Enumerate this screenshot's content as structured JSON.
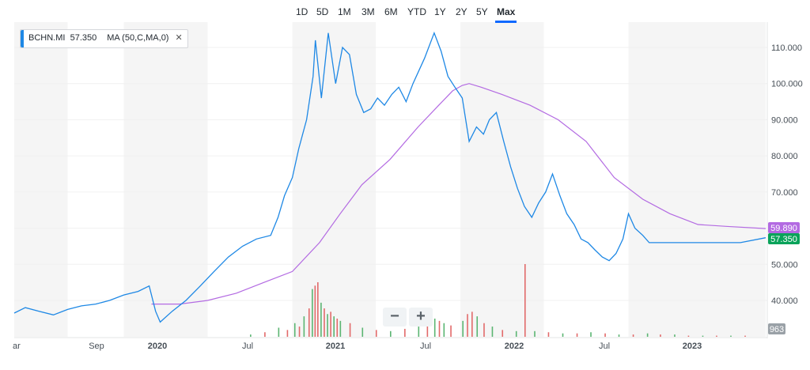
{
  "ranges": [
    {
      "label": "1D",
      "active": false
    },
    {
      "label": "5D",
      "active": false
    },
    {
      "label": "1M",
      "active": false
    },
    {
      "label": "3M",
      "active": false
    },
    {
      "label": "6M",
      "active": false
    },
    {
      "label": "YTD",
      "active": false
    },
    {
      "label": "1Y",
      "active": false
    },
    {
      "label": "2Y",
      "active": false
    },
    {
      "label": "5Y",
      "active": false
    },
    {
      "label": "Max",
      "active": true
    }
  ],
  "legend": {
    "symbol": "BCHN.MI",
    "price": "57.350",
    "ma_label": "MA (50,C,MA,0)",
    "close_icon": "close-icon"
  },
  "zoom": {
    "minus": "−",
    "plus": "+"
  },
  "badges": {
    "ma": "59.890",
    "price": "57.350",
    "volume": "963"
  },
  "colors": {
    "price": "#1e88e5",
    "ma": "#b36ae2",
    "price_badge": "#0aa35a",
    "ma_badge": "#b36ae2",
    "vol_up": "#5bb572",
    "vol_down": "#e26a6a",
    "shade": "#f5f5f5"
  },
  "chart_data": {
    "type": "line",
    "ylim": [
      33,
      117
    ],
    "y_ticks": [
      "110.000",
      "100.000",
      "90.000",
      "80.000",
      "70.000",
      "60.000",
      "50.000",
      "40.000"
    ],
    "x_ticks": [
      "Mar",
      "Sep",
      "2020",
      "Jul",
      "2021",
      "Jul",
      "2022",
      "Jul",
      "2023"
    ],
    "x_range": [
      "2019-05-08",
      "2023-10-26"
    ],
    "series": [
      {
        "values": [
          [
            "2019-05-08",
            36.5
          ],
          [
            "2019-06-01",
            38
          ],
          [
            "2019-07-01",
            37
          ],
          [
            "2019-08-01",
            36
          ],
          [
            "2019-09-01",
            37.5
          ],
          [
            "2019-10-01",
            38.5
          ],
          [
            "2019-11-01",
            39
          ],
          [
            "2019-12-01",
            40
          ],
          [
            "2020-01-01",
            41.5
          ],
          [
            "2020-02-01",
            42.5
          ],
          [
            "2020-02-25",
            44
          ],
          [
            "2020-03-10",
            37
          ],
          [
            "2020-03-20",
            34
          ],
          [
            "2020-04-15",
            37
          ],
          [
            "2020-05-15",
            40
          ],
          [
            "2020-06-15",
            44
          ],
          [
            "2020-07-15",
            48
          ],
          [
            "2020-08-15",
            52
          ],
          [
            "2020-09-15",
            55
          ],
          [
            "2020-10-15",
            57
          ],
          [
            "2020-11-15",
            58
          ],
          [
            "2020-12-01",
            63
          ],
          [
            "2020-12-15",
            69
          ],
          [
            "2021-01-01",
            74
          ],
          [
            "2021-01-15",
            82
          ],
          [
            "2021-02-01",
            90
          ],
          [
            "2021-02-15",
            102
          ],
          [
            "2021-02-20",
            112
          ],
          [
            "2021-03-05",
            96
          ],
          [
            "2021-03-20",
            114
          ],
          [
            "2021-04-05",
            100
          ],
          [
            "2021-04-20",
            110
          ],
          [
            "2021-05-05",
            108
          ],
          [
            "2021-05-20",
            97
          ],
          [
            "2021-06-05",
            92
          ],
          [
            "2021-06-20",
            93
          ],
          [
            "2021-07-05",
            96
          ],
          [
            "2021-07-20",
            94
          ],
          [
            "2021-08-05",
            97
          ],
          [
            "2021-08-20",
            99
          ],
          [
            "2021-09-05",
            95
          ],
          [
            "2021-09-20",
            100
          ],
          [
            "2021-10-15",
            107
          ],
          [
            "2021-11-05",
            114
          ],
          [
            "2021-11-20",
            109
          ],
          [
            "2021-12-05",
            102
          ],
          [
            "2021-12-20",
            99
          ],
          [
            "2022-01-05",
            96
          ],
          [
            "2022-01-20",
            84
          ],
          [
            "2022-02-05",
            88
          ],
          [
            "2022-02-20",
            86
          ],
          [
            "2022-03-05",
            90
          ],
          [
            "2022-03-20",
            92
          ],
          [
            "2022-04-05",
            84
          ],
          [
            "2022-04-20",
            77
          ],
          [
            "2022-05-05",
            71
          ],
          [
            "2022-05-20",
            66
          ],
          [
            "2022-06-05",
            63
          ],
          [
            "2022-06-20",
            67
          ],
          [
            "2022-07-05",
            70
          ],
          [
            "2022-07-20",
            75
          ],
          [
            "2022-08-05",
            69
          ],
          [
            "2022-08-20",
            64
          ],
          [
            "2022-09-05",
            61
          ],
          [
            "2022-09-20",
            57
          ],
          [
            "2022-10-05",
            56
          ],
          [
            "2022-10-20",
            54
          ],
          [
            "2022-11-05",
            52
          ],
          [
            "2022-11-20",
            51
          ],
          [
            "2022-12-05",
            53
          ],
          [
            "2022-12-20",
            57
          ],
          [
            "2023-01-01",
            64
          ],
          [
            "2023-01-15",
            60
          ],
          [
            "2023-02-01",
            58
          ],
          [
            "2023-02-15",
            56
          ],
          [
            "2023-03-01",
            56
          ],
          [
            "2023-04-01",
            56
          ],
          [
            "2023-05-01",
            56
          ],
          [
            "2023-06-01",
            56
          ],
          [
            "2023-07-01",
            56
          ],
          [
            "2023-08-01",
            56
          ],
          [
            "2023-09-01",
            56
          ],
          [
            "2023-10-26",
            57.35
          ]
        ]
      },
      {
        "values": [
          [
            "2020-03-01",
            39
          ],
          [
            "2020-05-01",
            39
          ],
          [
            "2020-07-01",
            40
          ],
          [
            "2020-09-01",
            42
          ],
          [
            "2020-11-01",
            45
          ],
          [
            "2021-01-01",
            48
          ],
          [
            "2021-03-01",
            56
          ],
          [
            "2021-04-15",
            64
          ],
          [
            "2021-06-01",
            72
          ],
          [
            "2021-08-01",
            79
          ],
          [
            "2021-10-01",
            88
          ],
          [
            "2021-11-15",
            94
          ],
          [
            "2021-12-15",
            98
          ],
          [
            "2022-01-05",
            99.5
          ],
          [
            "2022-01-20",
            100
          ],
          [
            "2022-02-15",
            99
          ],
          [
            "2022-04-01",
            97
          ],
          [
            "2022-06-01",
            94
          ],
          [
            "2022-08-01",
            90
          ],
          [
            "2022-10-01",
            84
          ],
          [
            "2022-12-01",
            74
          ],
          [
            "2023-02-01",
            68
          ],
          [
            "2023-04-01",
            64
          ],
          [
            "2023-06-01",
            61
          ],
          [
            "2023-08-01",
            60.5
          ],
          [
            "2023-10-26",
            59.89
          ]
        ]
      }
    ],
    "volume": [
      [
        "2020-10-01",
        2,
        1
      ],
      [
        "2020-11-01",
        4,
        0
      ],
      [
        "2020-12-01",
        8,
        1
      ],
      [
        "2020-12-20",
        6,
        0
      ],
      [
        "2021-01-05",
        12,
        1
      ],
      [
        "2021-01-15",
        9,
        0
      ],
      [
        "2021-01-25",
        18,
        1
      ],
      [
        "2021-02-05",
        25,
        0
      ],
      [
        "2021-02-12",
        42,
        1
      ],
      [
        "2021-02-18",
        45,
        0
      ],
      [
        "2021-02-24",
        48,
        0
      ],
      [
        "2021-03-03",
        30,
        1
      ],
      [
        "2021-03-10",
        25,
        0
      ],
      [
        "2021-03-17",
        20,
        1
      ],
      [
        "2021-03-24",
        22,
        0
      ],
      [
        "2021-03-31",
        18,
        1
      ],
      [
        "2021-04-07",
        16,
        0
      ],
      [
        "2021-04-14",
        14,
        1
      ],
      [
        "2021-05-05",
        12,
        0
      ],
      [
        "2021-06-01",
        8,
        1
      ],
      [
        "2021-07-01",
        6,
        0
      ],
      [
        "2021-08-01",
        5,
        1
      ],
      [
        "2021-09-01",
        7,
        0
      ],
      [
        "2021-10-01",
        9,
        1
      ],
      [
        "2021-10-20",
        12,
        0
      ],
      [
        "2021-11-05",
        16,
        1
      ],
      [
        "2021-11-15",
        14,
        0
      ],
      [
        "2021-11-25",
        12,
        1
      ],
      [
        "2021-12-10",
        10,
        0
      ],
      [
        "2022-01-05",
        14,
        1
      ],
      [
        "2022-01-15",
        20,
        0
      ],
      [
        "2022-01-25",
        22,
        0
      ],
      [
        "2022-02-05",
        18,
        1
      ],
      [
        "2022-02-20",
        12,
        0
      ],
      [
        "2022-03-10",
        9,
        1
      ],
      [
        "2022-04-01",
        6,
        0
      ],
      [
        "2022-05-01",
        5,
        1
      ],
      [
        "2022-05-20",
        64,
        0
      ],
      [
        "2022-06-10",
        5,
        1
      ],
      [
        "2022-07-10",
        4,
        0
      ],
      [
        "2022-08-10",
        3,
        1
      ],
      [
        "2022-09-10",
        3,
        0
      ],
      [
        "2022-10-10",
        4,
        1
      ],
      [
        "2022-11-10",
        3,
        0
      ],
      [
        "2022-12-10",
        2,
        1
      ],
      [
        "2023-01-10",
        2,
        0
      ],
      [
        "2023-02-10",
        3,
        1
      ],
      [
        "2023-03-10",
        2,
        0
      ],
      [
        "2023-04-10",
        2,
        1
      ],
      [
        "2023-05-10",
        1,
        0
      ],
      [
        "2023-06-10",
        1,
        1
      ],
      [
        "2023-07-10",
        1,
        0
      ],
      [
        "2023-08-10",
        1,
        1
      ],
      [
        "2023-09-10",
        1,
        0
      ]
    ],
    "shaded_months": [
      [
        "2019-05-08",
        "2019-09-01"
      ],
      [
        "2020-01-01",
        "2020-07-01"
      ],
      [
        "2021-01-01",
        "2021-07-01"
      ],
      [
        "2022-01-01",
        "2022-07-01"
      ],
      [
        "2023-01-01",
        "2023-10-26"
      ]
    ]
  }
}
